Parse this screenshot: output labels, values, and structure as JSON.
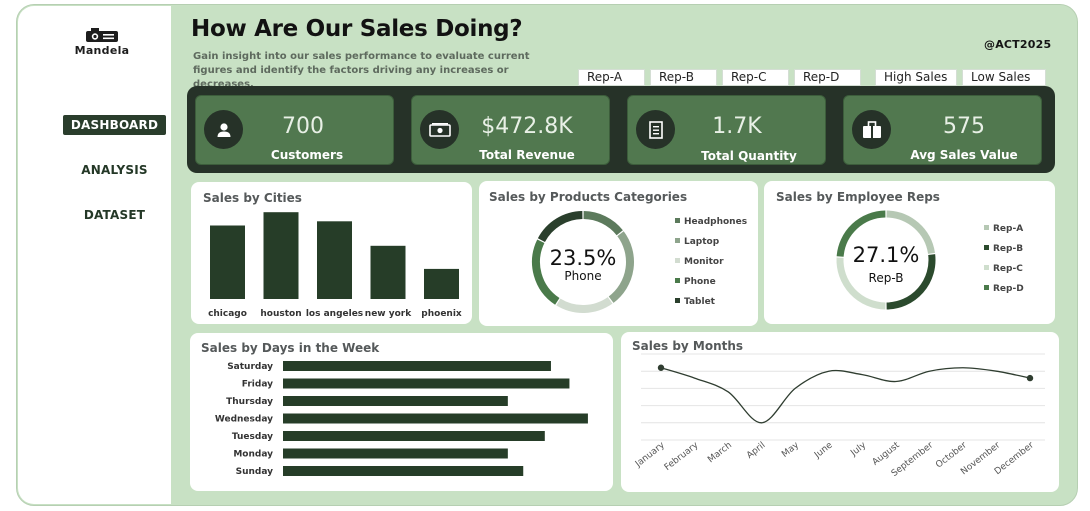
{
  "brand": {
    "name": "Mandela"
  },
  "nav": [
    {
      "label": "DASHBOARD",
      "active": true
    },
    {
      "label": "ANALYSIS",
      "active": false
    },
    {
      "label": "DATASET",
      "active": false
    }
  ],
  "header": {
    "title": "How Are Our Sales Doing?",
    "subtitle": "Gain insight into our sales performance to evaluate current figures and identify the factors driving any increases or decreases.",
    "handle": "@ACT2025"
  },
  "slicers": {
    "reps": [
      "Rep-A",
      "Rep-B",
      "Rep-C",
      "Rep-D"
    ],
    "sales_filters": [
      "High Sales",
      "Low Sales"
    ]
  },
  "kpis": [
    {
      "value": "700",
      "label": "Customers",
      "icon": "person-icon"
    },
    {
      "value": "$472.8K",
      "label": "Total Revenue",
      "icon": "money-icon"
    },
    {
      "value": "1.7K",
      "label": "Total Quantity",
      "icon": "receipt-icon"
    },
    {
      "value": "575",
      "label": "Avg Sales Value",
      "icon": "briefcase-icon"
    }
  ],
  "colors": {
    "dark_green": "#263d28",
    "kpi_card": "#51784f",
    "frame": "#c8e1c4",
    "line": "#2f3d30"
  },
  "chart_data": [
    {
      "id": "cities",
      "type": "bar",
      "title": "Sales by Cities",
      "categories": [
        "chicago",
        "houston",
        "los angeles",
        "new york",
        "phoenix"
      ],
      "values": [
        105,
        124,
        111,
        76,
        43
      ],
      "ylim": [
        0,
        130
      ],
      "grid": false,
      "legend": "none"
    },
    {
      "id": "categories",
      "type": "pie",
      "title": "Sales by Products Categories",
      "categories": [
        "Headphones",
        "Laptop",
        "Monitor",
        "Phone",
        "Tablet"
      ],
      "values": [
        14.5,
        25.5,
        19,
        23.5,
        17.5
      ],
      "highlight": {
        "value": "23.5%",
        "label": "Phone"
      },
      "legend": "right",
      "colors": [
        "#5c7a5c",
        "#8ea48c",
        "#d2dcd0",
        "#4a7a4a",
        "#2a3f2c"
      ]
    },
    {
      "id": "reps",
      "type": "pie",
      "title": "Sales by Employee Reps",
      "categories": [
        "Rep-A",
        "Rep-B",
        "Rep-C",
        "Rep-D"
      ],
      "values": [
        22.9,
        27.1,
        26,
        24
      ],
      "highlight": {
        "value": "27.1%",
        "label": "Rep-B"
      },
      "legend": "right",
      "colors": [
        "#b6c8b4",
        "#2b4a2d",
        "#cfdecd",
        "#4a7a4a"
      ]
    },
    {
      "id": "days",
      "type": "bar",
      "orientation": "horizontal",
      "title": "Sales by Days in the Week",
      "categories": [
        "Saturday",
        "Friday",
        "Thursday",
        "Wednesday",
        "Tuesday",
        "Monday",
        "Sunday"
      ],
      "values": [
        87,
        93,
        73,
        99,
        85,
        73,
        78
      ],
      "xlim": [
        0,
        100
      ],
      "grid": false,
      "legend": "none"
    },
    {
      "id": "months",
      "type": "line",
      "title": "Sales by Months",
      "categories": [
        "January",
        "February",
        "March",
        "April",
        "May",
        "June",
        "July",
        "August",
        "September",
        "October",
        "November",
        "December"
      ],
      "values": [
        41,
        38,
        34,
        25,
        35,
        40,
        39,
        37,
        40,
        41,
        40,
        38
      ],
      "ylim": [
        20,
        45
      ],
      "grid": true,
      "legend": "none",
      "markers": "first-last"
    }
  ]
}
